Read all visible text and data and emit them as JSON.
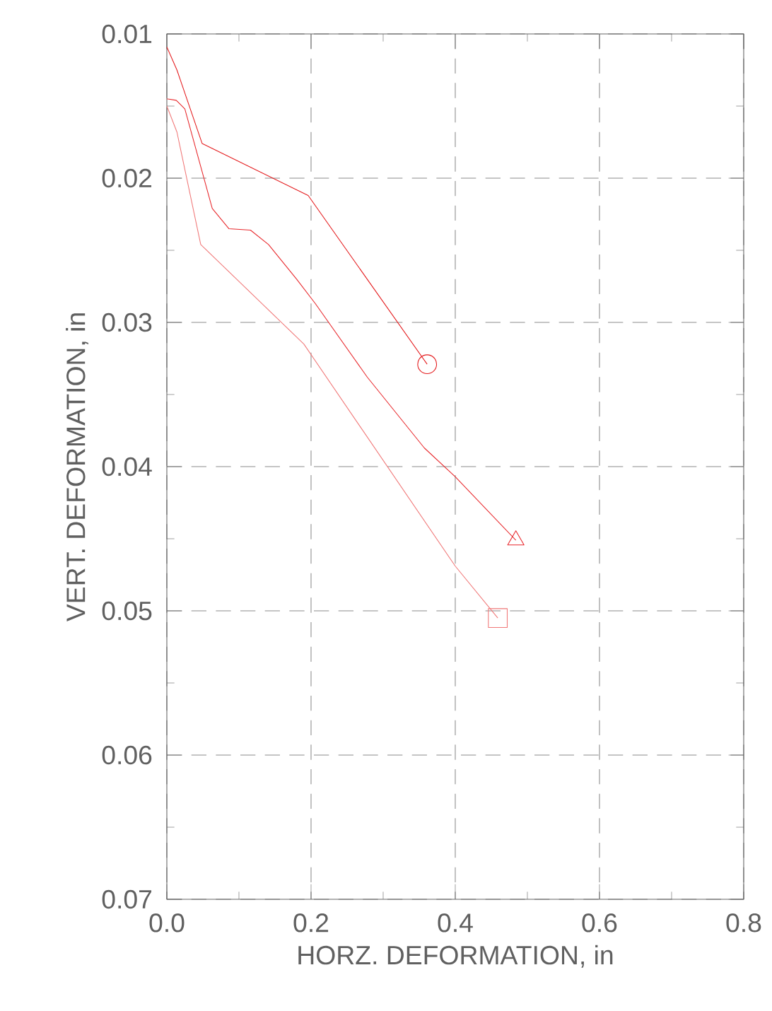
{
  "chart_data": {
    "type": "line",
    "xlabel": "HORZ. DEFORMATION, in",
    "ylabel": "VERT. DEFORMATION, in",
    "xlim": [
      0,
      0.8
    ],
    "ylim": [
      0.07,
      0.01
    ],
    "xticks": [
      {
        "value": 0,
        "label": "0.0"
      },
      0.2,
      0.4,
      0.6,
      0.8
    ],
    "yticks": [
      0.01,
      0.02,
      0.03,
      0.04,
      0.05,
      0.06,
      0.07
    ],
    "grid": true,
    "line_style": "solid",
    "series": [
      {
        "color": "#e41a1c",
        "x": [
          0,
          0.014,
          0.049,
          0.196,
          0.361
        ],
        "values": [
          0.0109,
          0.0125,
          0.0176,
          0.0212,
          0.0329
        ]
      },
      {
        "color": "#e8282c",
        "x": [
          0,
          0.013,
          0.025,
          0.063,
          0.086,
          0.116,
          0.141,
          0.18,
          0.206,
          0.278,
          0.357,
          0.4,
          0.484
        ],
        "values": [
          0.0145,
          0.0146,
          0.0152,
          0.0221,
          0.0235,
          0.0236,
          0.0246,
          0.027,
          0.0287,
          0.0338,
          0.0387,
          0.0407,
          0.0451
        ]
      },
      {
        "color": "#f07878",
        "x": [
          0,
          0.014,
          0.047,
          0.19,
          0.4,
          0.459
        ],
        "values": [
          0.015,
          0.0168,
          0.0246,
          0.0315,
          0.0469,
          0.0505
        ]
      },
      {
        "type": "scatter",
        "color": "#e41a1c",
        "marker": "circle",
        "x": [
          0.361
        ],
        "values": [
          0.0329
        ]
      },
      {
        "type": "scatter",
        "color": "#e8282c",
        "marker": "triangle",
        "x": [
          0.484
        ],
        "values": [
          0.0451
        ]
      },
      {
        "type": "scatter",
        "color": "#f07878",
        "marker": "square",
        "x": [
          0.459
        ],
        "values": [
          0.0505
        ]
      }
    ]
  }
}
